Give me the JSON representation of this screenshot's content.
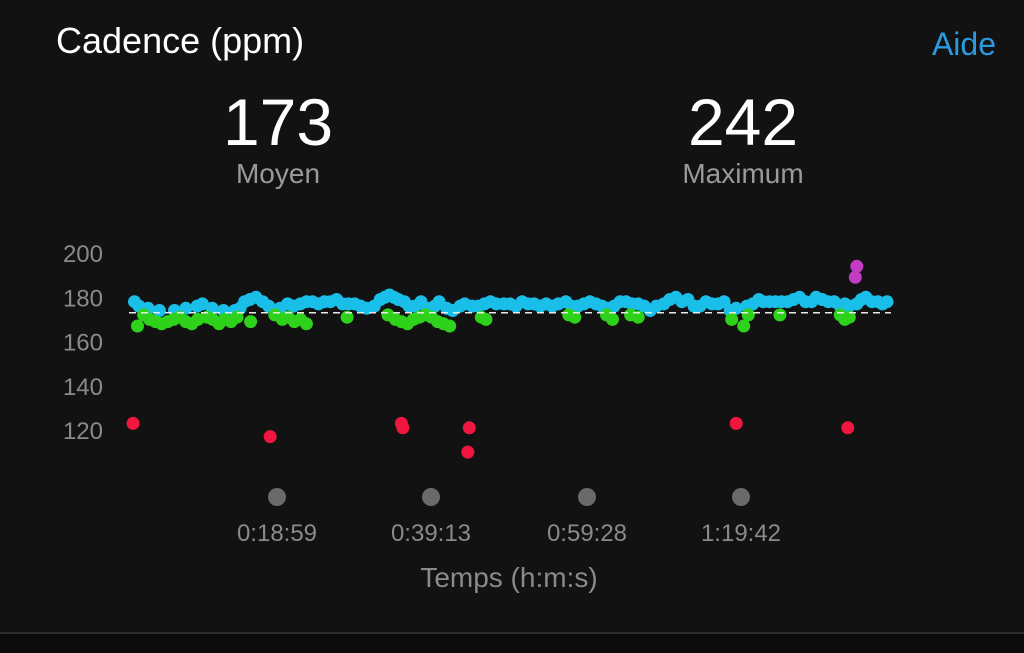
{
  "header": {
    "title": "Cadence (ppm)",
    "help_label": "Aide"
  },
  "stats": {
    "average": {
      "value": "173",
      "label": "Moyen"
    },
    "maximum": {
      "value": "242",
      "label": "Maximum"
    }
  },
  "colors": {
    "background": "#121212",
    "accent": "#2a9be0",
    "zone_purple": "#c23bc2",
    "zone_blue": "#19bfe8",
    "zone_green": "#2fd21b",
    "zone_red": "#f0163f",
    "timeline_marker": "#6a6a6a"
  },
  "chart_data": {
    "type": "scatter",
    "title": "",
    "xlabel": "Temps (h:m:s)",
    "ylabel": "",
    "ylim": [
      112,
      200
    ],
    "yticks": [
      120,
      140,
      160,
      180,
      200
    ],
    "xticks": [
      {
        "t": 18.98,
        "label": "0:18:59"
      },
      {
        "t": 39.22,
        "label": "0:39:13"
      },
      {
        "t": 59.47,
        "label": "0:59:28"
      },
      {
        "t": 79.7,
        "label": "1:19:42"
      }
    ],
    "xlim": [
      0,
      100
    ],
    "average_line": 173,
    "grid": false,
    "series": [
      {
        "color": "#19bfe8",
        "points": [
          [
            0.2,
            178
          ],
          [
            0.8,
            176
          ],
          [
            2.0,
            175
          ],
          [
            3.5,
            174
          ],
          [
            5.5,
            174
          ],
          [
            7.0,
            175
          ],
          [
            8.5,
            176
          ],
          [
            9.2,
            177
          ],
          [
            10.5,
            175
          ],
          [
            12.0,
            174
          ],
          [
            13.5,
            174
          ],
          [
            14.2,
            175
          ],
          [
            14.8,
            178
          ],
          [
            15.5,
            179
          ],
          [
            16.3,
            180
          ],
          [
            17.2,
            178
          ],
          [
            18.0,
            176
          ],
          [
            19.5,
            175
          ],
          [
            20.5,
            177
          ],
          [
            21.3,
            176
          ],
          [
            22.2,
            177
          ],
          [
            23.0,
            178
          ],
          [
            23.8,
            178
          ],
          [
            24.6,
            177
          ],
          [
            25.4,
            178
          ],
          [
            26.2,
            178
          ],
          [
            27.0,
            179
          ],
          [
            27.8,
            177
          ],
          [
            28.6,
            177
          ],
          [
            29.4,
            177
          ],
          [
            30.2,
            176
          ],
          [
            31.0,
            175
          ],
          [
            32.0,
            176
          ],
          [
            32.8,
            179
          ],
          [
            33.4,
            180
          ],
          [
            34.0,
            181
          ],
          [
            34.6,
            180
          ],
          [
            35.2,
            179
          ],
          [
            36.0,
            178
          ],
          [
            36.6,
            176
          ],
          [
            37.4,
            176
          ],
          [
            38.2,
            178
          ],
          [
            39.0,
            175
          ],
          [
            40.0,
            176
          ],
          [
            40.6,
            178
          ],
          [
            41.6,
            175
          ],
          [
            42.4,
            174
          ],
          [
            43.4,
            176
          ],
          [
            44.0,
            177
          ],
          [
            45.0,
            176
          ],
          [
            45.8,
            176
          ],
          [
            46.6,
            177
          ],
          [
            47.4,
            178
          ],
          [
            48.2,
            177
          ],
          [
            49.2,
            177
          ],
          [
            50.0,
            177
          ],
          [
            50.8,
            176
          ],
          [
            51.6,
            178
          ],
          [
            52.4,
            177
          ],
          [
            53.2,
            177
          ],
          [
            54.0,
            176
          ],
          [
            54.8,
            177
          ],
          [
            55.6,
            176
          ],
          [
            56.4,
            177
          ],
          [
            57.4,
            178
          ],
          [
            58.2,
            176
          ],
          [
            59.0,
            176
          ],
          [
            59.8,
            177
          ],
          [
            60.6,
            178
          ],
          [
            61.4,
            177
          ],
          [
            62.2,
            176
          ],
          [
            63.0,
            175
          ],
          [
            63.8,
            176
          ],
          [
            64.6,
            178
          ],
          [
            65.4,
            178
          ],
          [
            66.2,
            177
          ],
          [
            67.0,
            177
          ],
          [
            67.8,
            176
          ],
          [
            68.6,
            174
          ],
          [
            69.4,
            176
          ],
          [
            70.4,
            177
          ],
          [
            71.2,
            179
          ],
          [
            72.0,
            180
          ],
          [
            72.8,
            178
          ],
          [
            73.6,
            179
          ],
          [
            74.4,
            176
          ],
          [
            75.2,
            176
          ],
          [
            76.0,
            178
          ],
          [
            76.8,
            177
          ],
          [
            77.6,
            177
          ],
          [
            78.4,
            178
          ],
          [
            79.2,
            174
          ],
          [
            80.0,
            175
          ],
          [
            81.4,
            176
          ],
          [
            82.2,
            177
          ],
          [
            83.0,
            179
          ],
          [
            83.6,
            178
          ],
          [
            84.4,
            178
          ],
          [
            85.2,
            178
          ],
          [
            86.0,
            178
          ],
          [
            86.8,
            178
          ],
          [
            87.6,
            179
          ],
          [
            88.4,
            180
          ],
          [
            89.2,
            178
          ],
          [
            90.0,
            178
          ],
          [
            90.6,
            180
          ],
          [
            91.4,
            179
          ],
          [
            92.2,
            178
          ],
          [
            93.0,
            178
          ],
          [
            93.8,
            176
          ],
          [
            94.4,
            177
          ],
          [
            95.0,
            176
          ],
          [
            96.0,
            177
          ],
          [
            96.6,
            179
          ],
          [
            97.2,
            180
          ],
          [
            98.0,
            178
          ],
          [
            98.8,
            178
          ],
          [
            99.4,
            177
          ],
          [
            100.0,
            178
          ]
        ]
      },
      {
        "color": "#2fd21b",
        "points": [
          [
            0.6,
            167
          ],
          [
            1.4,
            172
          ],
          [
            2.2,
            170
          ],
          [
            3.0,
            169
          ],
          [
            3.8,
            168
          ],
          [
            4.6,
            169
          ],
          [
            5.4,
            170
          ],
          [
            6.2,
            171
          ],
          [
            7.0,
            169
          ],
          [
            7.8,
            168
          ],
          [
            8.6,
            170
          ],
          [
            9.8,
            171
          ],
          [
            10.6,
            170
          ],
          [
            11.4,
            168
          ],
          [
            12.2,
            170
          ],
          [
            13.0,
            169
          ],
          [
            13.8,
            171
          ],
          [
            15.6,
            169
          ],
          [
            18.8,
            172
          ],
          [
            19.8,
            170
          ],
          [
            20.6,
            171
          ],
          [
            21.4,
            169
          ],
          [
            22.2,
            170
          ],
          [
            23.0,
            168
          ],
          [
            28.4,
            171
          ],
          [
            33.8,
            172
          ],
          [
            34.8,
            170
          ],
          [
            35.6,
            169
          ],
          [
            36.4,
            168
          ],
          [
            37.2,
            170
          ],
          [
            38.0,
            171
          ],
          [
            38.8,
            172
          ],
          [
            39.6,
            171
          ],
          [
            40.4,
            169
          ],
          [
            41.2,
            168
          ],
          [
            42.0,
            167
          ],
          [
            46.2,
            171
          ],
          [
            46.8,
            170
          ],
          [
            57.8,
            172
          ],
          [
            58.6,
            171
          ],
          [
            62.8,
            172
          ],
          [
            63.6,
            170
          ],
          [
            66.0,
            172
          ],
          [
            67.0,
            171
          ],
          [
            79.4,
            170
          ],
          [
            81.0,
            167
          ],
          [
            81.6,
            172
          ],
          [
            85.8,
            172
          ],
          [
            93.8,
            172
          ],
          [
            94.4,
            170
          ],
          [
            95.0,
            171
          ]
        ]
      },
      {
        "color": "#c23bc2",
        "points": [
          [
            96.0,
            194
          ],
          [
            95.8,
            189
          ]
        ]
      },
      {
        "color": "#f0163f",
        "points": [
          [
            0.0,
            123
          ],
          [
            18.2,
            117
          ],
          [
            35.6,
            123
          ],
          [
            35.8,
            121
          ],
          [
            44.6,
            121
          ],
          [
            44.4,
            110
          ],
          [
            80.0,
            123
          ],
          [
            94.8,
            121
          ]
        ]
      }
    ]
  }
}
